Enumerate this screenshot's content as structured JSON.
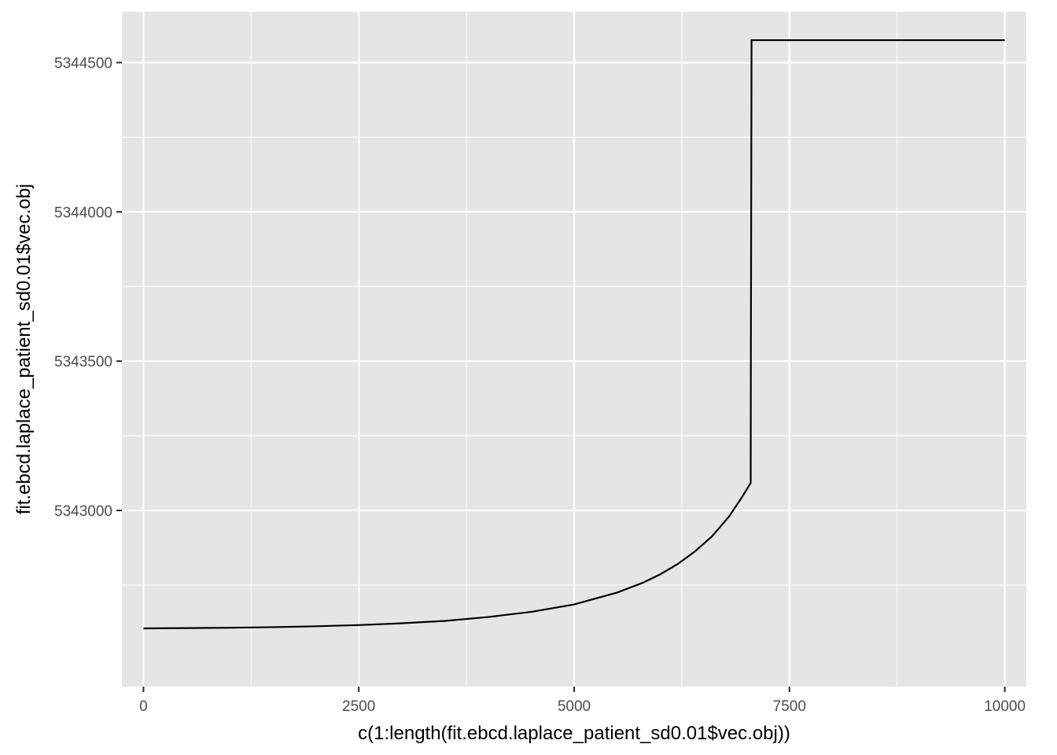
{
  "chart_data": {
    "type": "line",
    "title": "",
    "xlabel": "c(1:length(fit.ebcd.laplace_patient_sd0.01$vec.obj))",
    "ylabel": "fit.ebcd.laplace_patient_sd0.01$vec.obj",
    "xlim": [
      -250,
      10250
    ],
    "ylim": [
      5342410,
      5344670
    ],
    "x_ticks": [
      0,
      2500,
      5000,
      7500,
      10000
    ],
    "x_tick_labels": [
      "0",
      "2500",
      "5000",
      "7500",
      "10000"
    ],
    "y_ticks": [
      5343000,
      5343500,
      5344000,
      5344500
    ],
    "y_tick_labels": [
      "5343000",
      "5343500",
      "5344000",
      "5344500"
    ],
    "grid": true,
    "legend": "none",
    "series": [
      {
        "color": "#000000",
        "x": [
          1,
          500,
          1000,
          1500,
          2000,
          2500,
          3000,
          3500,
          4000,
          4500,
          5000,
          5500,
          5800,
          6000,
          6200,
          6400,
          6600,
          6800,
          6950,
          7050,
          7052,
          7060,
          7500,
          8000,
          8500,
          9000,
          9500,
          10000
        ],
        "y": [
          5342605,
          5342606,
          5342607,
          5342609,
          5342612,
          5342616,
          5342622,
          5342630,
          5342643,
          5342660,
          5342685,
          5342725,
          5342758,
          5342786,
          5342820,
          5342862,
          5342913,
          5342980,
          5343045,
          5343092,
          5343500,
          5344575,
          5344575,
          5344575,
          5344575,
          5344575,
          5344575,
          5344575
        ]
      }
    ]
  }
}
